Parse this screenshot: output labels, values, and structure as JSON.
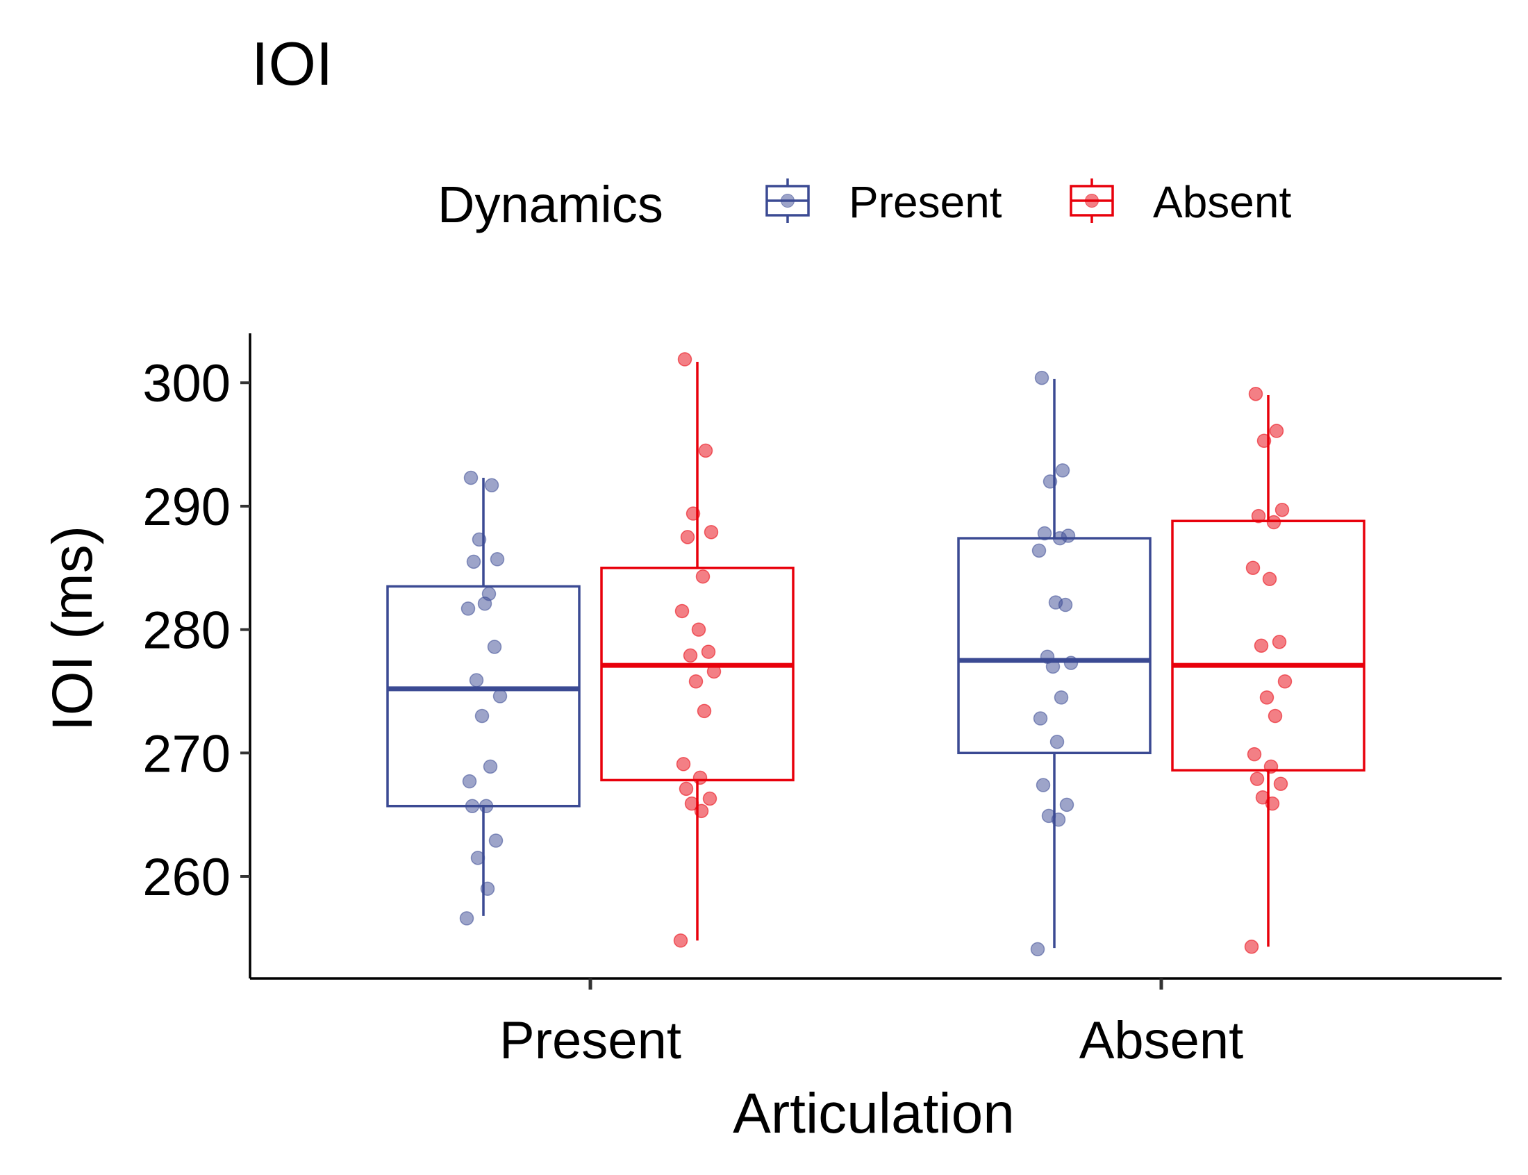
{
  "chart_data": {
    "type": "box",
    "title": "IOI",
    "xlabel": "Articulation",
    "ylabel": "IOI (ms)",
    "categories": [
      "Present",
      "Absent"
    ],
    "ylim": [
      252,
      304
    ],
    "yticks": [
      260,
      270,
      280,
      290,
      300
    ],
    "legend": {
      "title": "Dynamics",
      "position": "top",
      "entries": [
        "Present",
        "Absent"
      ]
    },
    "colors": {
      "Present": "#3b4a93",
      "Absent": "#e8000b"
    },
    "series": [
      {
        "name": "Present",
        "boxes": [
          {
            "category": "Present",
            "min": 256.8,
            "q1": 265.7,
            "median": 275.2,
            "q3": 283.5,
            "max": 292.3
          },
          {
            "category": "Absent",
            "min": 254.2,
            "q1": 270.0,
            "median": 277.5,
            "q3": 287.4,
            "max": 300.3
          }
        ],
        "points": [
          {
            "category": "Present",
            "values": [
              292.3,
              291.7,
              287.3,
              285.7,
              285.5,
              282.9,
              281.7,
              282.1,
              278.6,
              275.9,
              274.6,
              273.0,
              268.9,
              267.7,
              265.7,
              265.7,
              262.9,
              261.5,
              259.0,
              256.6
            ]
          },
          {
            "category": "Absent",
            "values": [
              300.4,
              292.9,
              292.0,
              287.6,
              287.8,
              287.4,
              286.4,
              282.2,
              282.0,
              277.8,
              277.3,
              277.0,
              274.5,
              272.8,
              270.9,
              267.4,
              265.8,
              264.9,
              264.6,
              254.1
            ]
          }
        ]
      },
      {
        "name": "Absent",
        "boxes": [
          {
            "category": "Present",
            "min": 254.8,
            "q1": 267.8,
            "median": 277.1,
            "q3": 285.0,
            "max": 301.7
          },
          {
            "category": "Absent",
            "min": 254.3,
            "q1": 268.6,
            "median": 277.1,
            "q3": 288.8,
            "max": 299.0
          }
        ],
        "points": [
          {
            "category": "Present",
            "values": [
              301.9,
              294.5,
              289.4,
              287.9,
              287.5,
              284.3,
              281.5,
              280.0,
              278.2,
              277.9,
              276.6,
              275.8,
              273.4,
              269.1,
              268.0,
              267.1,
              266.3,
              265.9,
              265.3,
              254.8
            ]
          },
          {
            "category": "Absent",
            "values": [
              299.1,
              296.1,
              295.3,
              289.7,
              289.2,
              288.7,
              285.0,
              284.1,
              279.0,
              278.7,
              275.8,
              274.5,
              273.0,
              269.9,
              268.9,
              267.9,
              267.5,
              266.4,
              265.9,
              254.3
            ]
          }
        ]
      }
    ]
  }
}
